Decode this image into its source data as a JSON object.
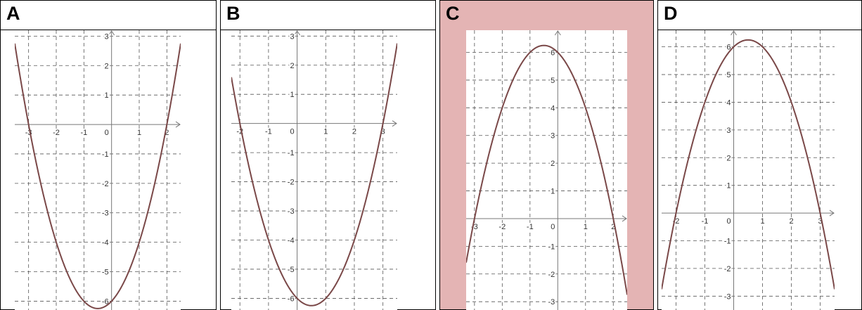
{
  "panels": [
    {
      "label": "A",
      "highlighted": false
    },
    {
      "label": "B",
      "highlighted": false
    },
    {
      "label": "C",
      "highlighted": true
    },
    {
      "label": "D",
      "highlighted": false
    }
  ],
  "colors": {
    "curve": "#7a4848",
    "grid": "#555555",
    "axis": "#777777",
    "highlight": "#e4b4b4"
  },
  "chart_data": [
    {
      "type": "line",
      "panel": "A",
      "function": "y = x^2 + x - 6",
      "coefficients": [
        1,
        1,
        -6
      ],
      "xlim": [
        -3.5,
        2.5
      ],
      "ylim": [
        -6.3,
        3.2
      ],
      "x_ticks": [
        "-3",
        "-2",
        "-1",
        "0",
        "1",
        "2"
      ],
      "y_ticks": [
        "3",
        "2",
        "1",
        "-1",
        "-2",
        "-3",
        "-4",
        "-5",
        "-6"
      ]
    },
    {
      "type": "line",
      "panel": "B",
      "function": "y = x^2 - x - 6",
      "coefficients": [
        1,
        -1,
        -6
      ],
      "xlim": [
        -2.3,
        3.5
      ],
      "ylim": [
        -6.4,
        3.2
      ],
      "x_ticks": [
        "-2",
        "-1",
        "0",
        "1",
        "2",
        "3"
      ],
      "y_ticks": [
        "3",
        "2",
        "1",
        "-1",
        "-2",
        "-3",
        "-4",
        "-5",
        "-6"
      ]
    },
    {
      "type": "line",
      "panel": "C",
      "function": "y = -x^2 - x + 6",
      "coefficients": [
        -1,
        -1,
        6
      ],
      "xlim": [
        -3.3,
        2.5
      ],
      "ylim": [
        -3.3,
        6.8
      ],
      "x_ticks": [
        "-3",
        "-2",
        "-1",
        "0",
        "1",
        "2"
      ],
      "y_ticks": [
        "6",
        "5",
        "4",
        "3",
        "2",
        "1",
        "-1",
        "-2",
        "-3"
      ]
    },
    {
      "type": "line",
      "panel": "D",
      "function": "y = -x^2 + x + 6",
      "coefficients": [
        -1,
        1,
        6
      ],
      "xlim": [
        -2.5,
        3.5
      ],
      "ylim": [
        -3.5,
        6.6
      ],
      "x_ticks": [
        "-2",
        "-1",
        "0",
        "1",
        "2",
        "3"
      ],
      "y_ticks": [
        "6",
        "5",
        "4",
        "3",
        "2",
        "1",
        "-1",
        "-2",
        "-3"
      ]
    }
  ]
}
